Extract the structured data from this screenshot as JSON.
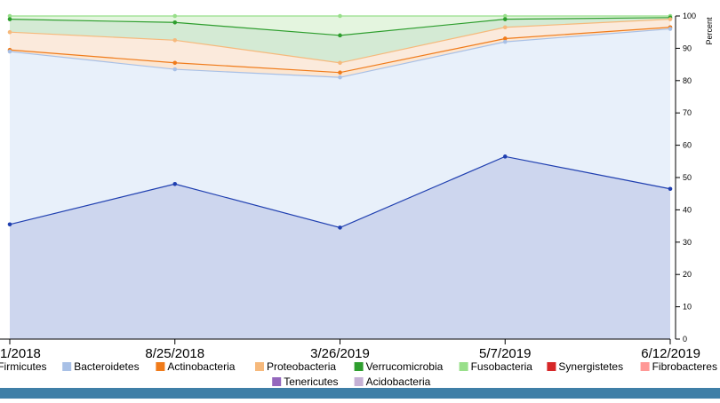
{
  "chart_data": {
    "type": "area",
    "stacking": "cumulative",
    "x": [
      "1/2018",
      "8/25/2018",
      "3/26/2019",
      "5/7/2019",
      "6/12/2019"
    ],
    "ylabel": "Percent",
    "ylim": [
      0,
      100
    ],
    "yticks": [
      0,
      10,
      20,
      30,
      40,
      50,
      60,
      70,
      80,
      90,
      100
    ],
    "y_axis_position": "right",
    "grid": false,
    "legend_position": "bottom",
    "series": [
      {
        "name": "Firmicutes",
        "color": "#1f3fb0",
        "fill": "#cdd6ee",
        "values": [
          35.5,
          48,
          34.5,
          56.5,
          46.5
        ]
      },
      {
        "name": "Bacteroidetes",
        "color": "#a8c0e6",
        "fill": "#e8f0fa",
        "values": [
          53.5,
          35.5,
          46.5,
          35.5,
          49.5
        ]
      },
      {
        "name": "Actinobacteria",
        "color": "#f07b1a",
        "fill": "#fbe6d2",
        "values": [
          0.5,
          2,
          1.5,
          1,
          0.5
        ]
      },
      {
        "name": "Proteobacteria",
        "color": "#f6b97c",
        "fill": "#fbeadc",
        "values": [
          5.5,
          7,
          3,
          3.5,
          2.5
        ]
      },
      {
        "name": "Verrucomicrobia",
        "color": "#2e9e2e",
        "fill": "#d4ead4",
        "values": [
          4,
          5.5,
          8.5,
          2.5,
          0.5
        ]
      },
      {
        "name": "Fusobacteria",
        "color": "#98df8a",
        "fill": "#e4f5df",
        "values": [
          1,
          2,
          6,
          1,
          0.5
        ]
      },
      {
        "name": "Synergistetes",
        "color": "#d62728",
        "fill": "#f5d4d4",
        "values": [
          0,
          0,
          0,
          0,
          0
        ]
      },
      {
        "name": "Fibrobacteres",
        "color": "#ff9896",
        "fill": "#fde4e3",
        "values": [
          0,
          0,
          0,
          0,
          0
        ]
      },
      {
        "name": "Tenericutes",
        "color": "#9467bd",
        "fill": "#e9e0f2",
        "values": [
          0,
          0,
          0,
          0,
          0
        ]
      },
      {
        "name": "Acidobacteria",
        "color": "#c5b0d5",
        "fill": "#efe8f5",
        "values": [
          0,
          0,
          0,
          0,
          0
        ]
      }
    ]
  }
}
